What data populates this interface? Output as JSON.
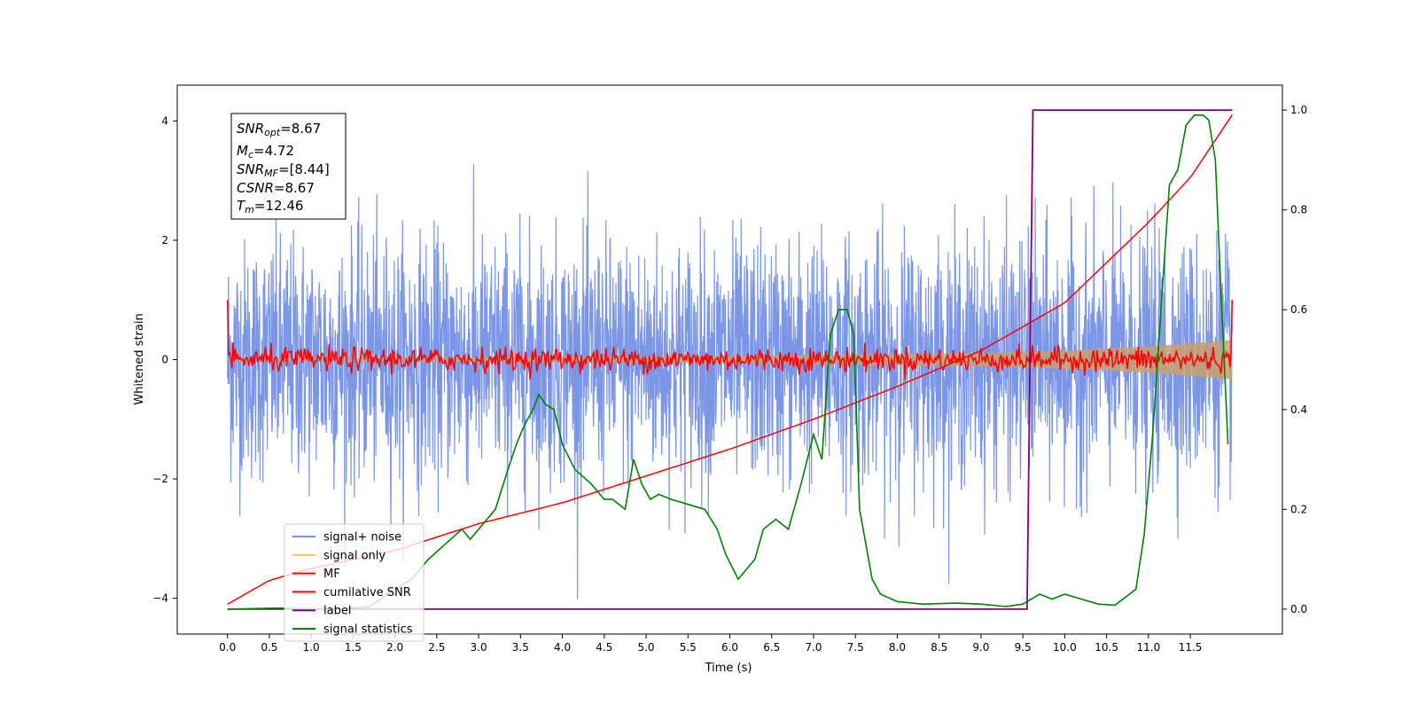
{
  "chart_data": {
    "type": "line",
    "xlabel": "Time (s)",
    "ylabel": "Whitened strain",
    "xlim": [
      -0.6,
      12.6
    ],
    "ylim_left": [
      -4.6,
      4.6
    ],
    "ylim_right": [
      -0.05,
      1.05
    ],
    "xticks": [
      "0.0",
      "0.5",
      "1.0",
      "1.5",
      "2.0",
      "2.5",
      "3.0",
      "3.5",
      "4.0",
      "4.5",
      "5.0",
      "5.5",
      "6.0",
      "6.5",
      "7.0",
      "7.5",
      "8.0",
      "8.5",
      "9.0",
      "9.5",
      "10.0",
      "10.5",
      "11.0",
      "11.5"
    ],
    "xtick_values": [
      0,
      0.5,
      1,
      1.5,
      2,
      2.5,
      3,
      3.5,
      4,
      4.5,
      5,
      5.5,
      6,
      6.5,
      7,
      7.5,
      8,
      8.5,
      9,
      9.5,
      10,
      10.5,
      11,
      11.5
    ],
    "yticks_left": [
      "−4",
      "−2",
      "0",
      "2",
      "4"
    ],
    "ytick_left_values": [
      -4,
      -2,
      0,
      2,
      4
    ],
    "yticks_right": [
      "0.0",
      "0.2",
      "0.4",
      "0.6",
      "0.8",
      "1.0"
    ],
    "ytick_right_values": [
      0,
      0.2,
      0.4,
      0.6,
      0.8,
      1.0
    ],
    "grid": false,
    "legend_position": "bottom-left",
    "series": [
      {
        "name": "signal+ noise",
        "color": "#7b96e6",
        "axis": "left",
        "x_range": [
          0,
          12.0
        ],
        "amplitude_std": 1.0,
        "note": "dense noisy trace"
      },
      {
        "name": "signal only",
        "color": "#ffbf60",
        "axis": "left",
        "envelope": {
          "x": [
            0,
            6,
            9,
            10,
            11,
            12
          ],
          "halfwidth": [
            0.02,
            0.06,
            0.11,
            0.15,
            0.22,
            0.33
          ]
        }
      },
      {
        "name": "MF",
        "color": "#ff0000",
        "axis": "left",
        "x_range": [
          0,
          12.0
        ],
        "amplitude_std": 0.1
      },
      {
        "name": "cumilative SNR",
        "color": "#ff0000",
        "axis": "left",
        "x": [
          0,
          0.5,
          1.0,
          2.0,
          3.0,
          4.0,
          5.0,
          6.0,
          7.0,
          8.0,
          9.0,
          10.0,
          11.0,
          11.5,
          12.0
        ],
        "y": [
          -4.1,
          -3.7,
          -3.5,
          -3.2,
          -2.75,
          -2.4,
          -1.95,
          -1.5,
          -1.0,
          -0.45,
          0.15,
          0.95,
          2.3,
          3.05,
          4.1
        ]
      },
      {
        "name": "label",
        "color": "#800080",
        "axis": "right",
        "x": [
          0,
          9.55,
          9.62,
          12.0
        ],
        "y": [
          0,
          0,
          1,
          1
        ]
      },
      {
        "name": "signal statistics",
        "color": "#008000",
        "axis": "right",
        "x": [
          0.0,
          0.6,
          1.3,
          1.7,
          2.0,
          2.2,
          2.4,
          2.6,
          2.8,
          2.9,
          3.05,
          3.2,
          3.35,
          3.45,
          3.55,
          3.65,
          3.72,
          3.8,
          3.9,
          4.0,
          4.15,
          4.35,
          4.5,
          4.6,
          4.75,
          4.85,
          4.95,
          5.05,
          5.15,
          5.3,
          5.5,
          5.7,
          5.85,
          5.95,
          6.1,
          6.3,
          6.4,
          6.55,
          6.7,
          6.85,
          7.0,
          7.1,
          7.2,
          7.3,
          7.4,
          7.48,
          7.55,
          7.7,
          7.8,
          8.0,
          8.3,
          8.7,
          9.0,
          9.3,
          9.5,
          9.7,
          9.85,
          10.0,
          10.2,
          10.4,
          10.6,
          10.85,
          10.95,
          11.05,
          11.15,
          11.25,
          11.35,
          11.45,
          11.55,
          11.65,
          11.72,
          11.8,
          11.85,
          11.95
        ],
        "y": [
          0.0,
          0.002,
          0.0,
          0.005,
          0.04,
          0.06,
          0.1,
          0.13,
          0.16,
          0.14,
          0.17,
          0.2,
          0.28,
          0.33,
          0.37,
          0.4,
          0.43,
          0.41,
          0.4,
          0.33,
          0.28,
          0.25,
          0.22,
          0.22,
          0.2,
          0.3,
          0.25,
          0.22,
          0.23,
          0.22,
          0.21,
          0.2,
          0.16,
          0.11,
          0.06,
          0.1,
          0.16,
          0.18,
          0.16,
          0.25,
          0.35,
          0.3,
          0.55,
          0.6,
          0.6,
          0.55,
          0.2,
          0.06,
          0.03,
          0.015,
          0.01,
          0.012,
          0.01,
          0.005,
          0.01,
          0.03,
          0.02,
          0.03,
          0.02,
          0.01,
          0.008,
          0.04,
          0.15,
          0.35,
          0.6,
          0.85,
          0.88,
          0.97,
          0.99,
          0.99,
          0.98,
          0.9,
          0.7,
          0.33
        ]
      }
    ]
  },
  "info_box": {
    "snr_opt_main": "SNR",
    "snr_opt_sub": "opt",
    "snr_opt_val": "=8.67",
    "mc_main": "M",
    "mc_sub": "c",
    "mc_val": "=4.72",
    "snr_mf_main": "SNR",
    "snr_mf_sub": "MF",
    "snr_mf_val": "=[8.44]",
    "csnr_main": "CSNR",
    "csnr_val": "=8.67",
    "tm_main": "T",
    "tm_sub": "m",
    "tm_val": "=12.46"
  },
  "legend": {
    "items": [
      {
        "label": "signal+ noise",
        "color": "#7b96e6"
      },
      {
        "label": "signal only",
        "color": "#ffbf60"
      },
      {
        "label": "MF",
        "color": "#ff0000"
      },
      {
        "label": "cumilative SNR",
        "color": "#ff0000"
      },
      {
        "label": "label",
        "color": "#800080"
      },
      {
        "label": "signal statistics",
        "color": "#008000"
      }
    ]
  }
}
